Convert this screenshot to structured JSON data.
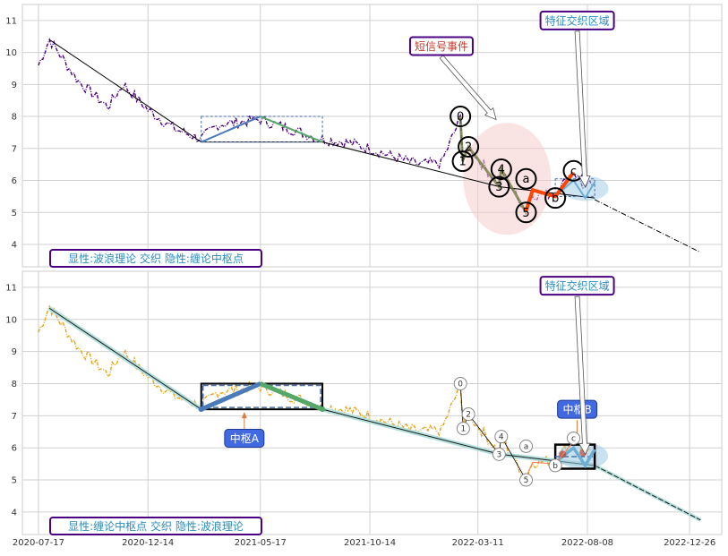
{
  "chart_data": [
    {
      "type": "line",
      "title": "",
      "panel_label": "显性:波浪理论 交织 隐性:缠论中枢点",
      "x_ticks": [
        "2020-07-17",
        "2020-12-14",
        "2021-05-17",
        "2021-10-14",
        "2022-03-11",
        "2022-08-08",
        "2022-12-26"
      ],
      "y_ticks": [
        4,
        5,
        6,
        7,
        8,
        9,
        10,
        11
      ],
      "ylim": [
        3.3,
        11.5
      ],
      "grid": true,
      "series_price": {
        "color": "#4b0082",
        "style": "dash-dot"
      },
      "trend_line": {
        "points": [
          [
            "2020-08-01",
            10.4
          ],
          [
            "2021-02-25",
            7.2
          ],
          [
            "2021-05-17",
            8.0
          ],
          [
            "2021-08-10",
            7.2
          ],
          [
            "2022-04-10",
            5.8
          ],
          [
            "2022-08-18",
            5.4
          ]
        ],
        "extension": [
          [
            "2022-08-18",
            5.4
          ],
          [
            "2023-01-10",
            3.75
          ]
        ]
      },
      "center_box": {
        "x_start": "2021-02-25",
        "x_end": "2021-08-10",
        "y_low": 7.2,
        "y_high": 8.0
      },
      "center_box_b": {
        "x_start": "2022-06-25",
        "x_end": "2022-08-18",
        "y_low": 5.5,
        "y_high": 6.05
      },
      "wave_labels": [
        {
          "text": "0",
          "x": "2022-02-15",
          "y": 8.0
        },
        {
          "text": "1",
          "x": "2022-02-18",
          "y": 6.6
        },
        {
          "text": "2",
          "x": "2022-02-26",
          "y": 7.05
        },
        {
          "text": "3",
          "x": "2022-04-09",
          "y": 5.8
        },
        {
          "text": "4",
          "x": "2022-04-12",
          "y": 6.35
        },
        {
          "text": "5",
          "x": "2022-05-16",
          "y": 5.0
        },
        {
          "text": "a",
          "x": "2022-05-16",
          "y": 6.05
        },
        {
          "text": "b",
          "x": "2022-06-25",
          "y": 5.45
        },
        {
          "text": "c",
          "x": "2022-07-20",
          "y": 6.3
        }
      ],
      "annotations": [
        {
          "text": "短信号事件",
          "color": "#c0392b",
          "x": "2022-01-20",
          "y": 10.2,
          "arrow_to": [
            "2022-04-05",
            7.9
          ]
        },
        {
          "text": "特征交织区域",
          "color": "#2b8cbe",
          "x": "2022-07-25",
          "y": 11.0,
          "arrow_to": [
            "2022-08-05",
            5.8
          ]
        }
      ],
      "signal_ellipse": {
        "cx": "2022-04-20",
        "cy": 6.05,
        "rx_days": 60,
        "ry": 1.75,
        "color": "#f4cccc"
      }
    },
    {
      "type": "line",
      "title": "",
      "panel_label": "显性:缠论中枢点 交织 隐性:波浪理论",
      "x_ticks": [
        "2020-07-17",
        "2020-12-14",
        "2021-05-17",
        "2021-10-14",
        "2022-03-11",
        "2022-08-08",
        "2022-12-26"
      ],
      "y_ticks": [
        4,
        5,
        6,
        7,
        8,
        9,
        10,
        11
      ],
      "ylim": [
        3.3,
        11.5
      ],
      "grid": true,
      "series_price": {
        "color": "#e8a317",
        "style": "dash-dot"
      },
      "centers": [
        {
          "label": "中枢A",
          "x_start": "2021-02-25",
          "x_end": "2021-08-10",
          "y_low": 7.2,
          "y_high": 8.0,
          "label_x": "2021-04-25",
          "label_y": 6.3
        },
        {
          "label": "中枢B",
          "x_start": "2022-06-25",
          "x_end": "2022-08-18",
          "y_low": 5.35,
          "y_high": 6.1,
          "label_x": "2022-07-25",
          "label_y": 7.2
        }
      ],
      "wave_labels": [
        {
          "text": "0",
          "x": "2022-02-15",
          "y": 8.0
        },
        {
          "text": "1",
          "x": "2022-02-19",
          "y": 6.6
        },
        {
          "text": "2",
          "x": "2022-02-26",
          "y": 7.05
        },
        {
          "text": "3",
          "x": "2022-04-09",
          "y": 5.8
        },
        {
          "text": "4",
          "x": "2022-04-12",
          "y": 6.35
        },
        {
          "text": "5",
          "x": "2022-05-16",
          "y": 5.0
        },
        {
          "text": "a",
          "x": "2022-05-16",
          "y": 6.05
        },
        {
          "text": "b",
          "x": "2022-06-25",
          "y": 5.45
        },
        {
          "text": "c",
          "x": "2022-07-20",
          "y": 6.3
        }
      ],
      "annotations": [
        {
          "text": "特征交织区域",
          "color": "#2b8cbe",
          "x": "2022-07-25",
          "y": 11.05,
          "arrow_to": [
            "2022-08-05",
            5.8
          ]
        }
      ]
    }
  ]
}
